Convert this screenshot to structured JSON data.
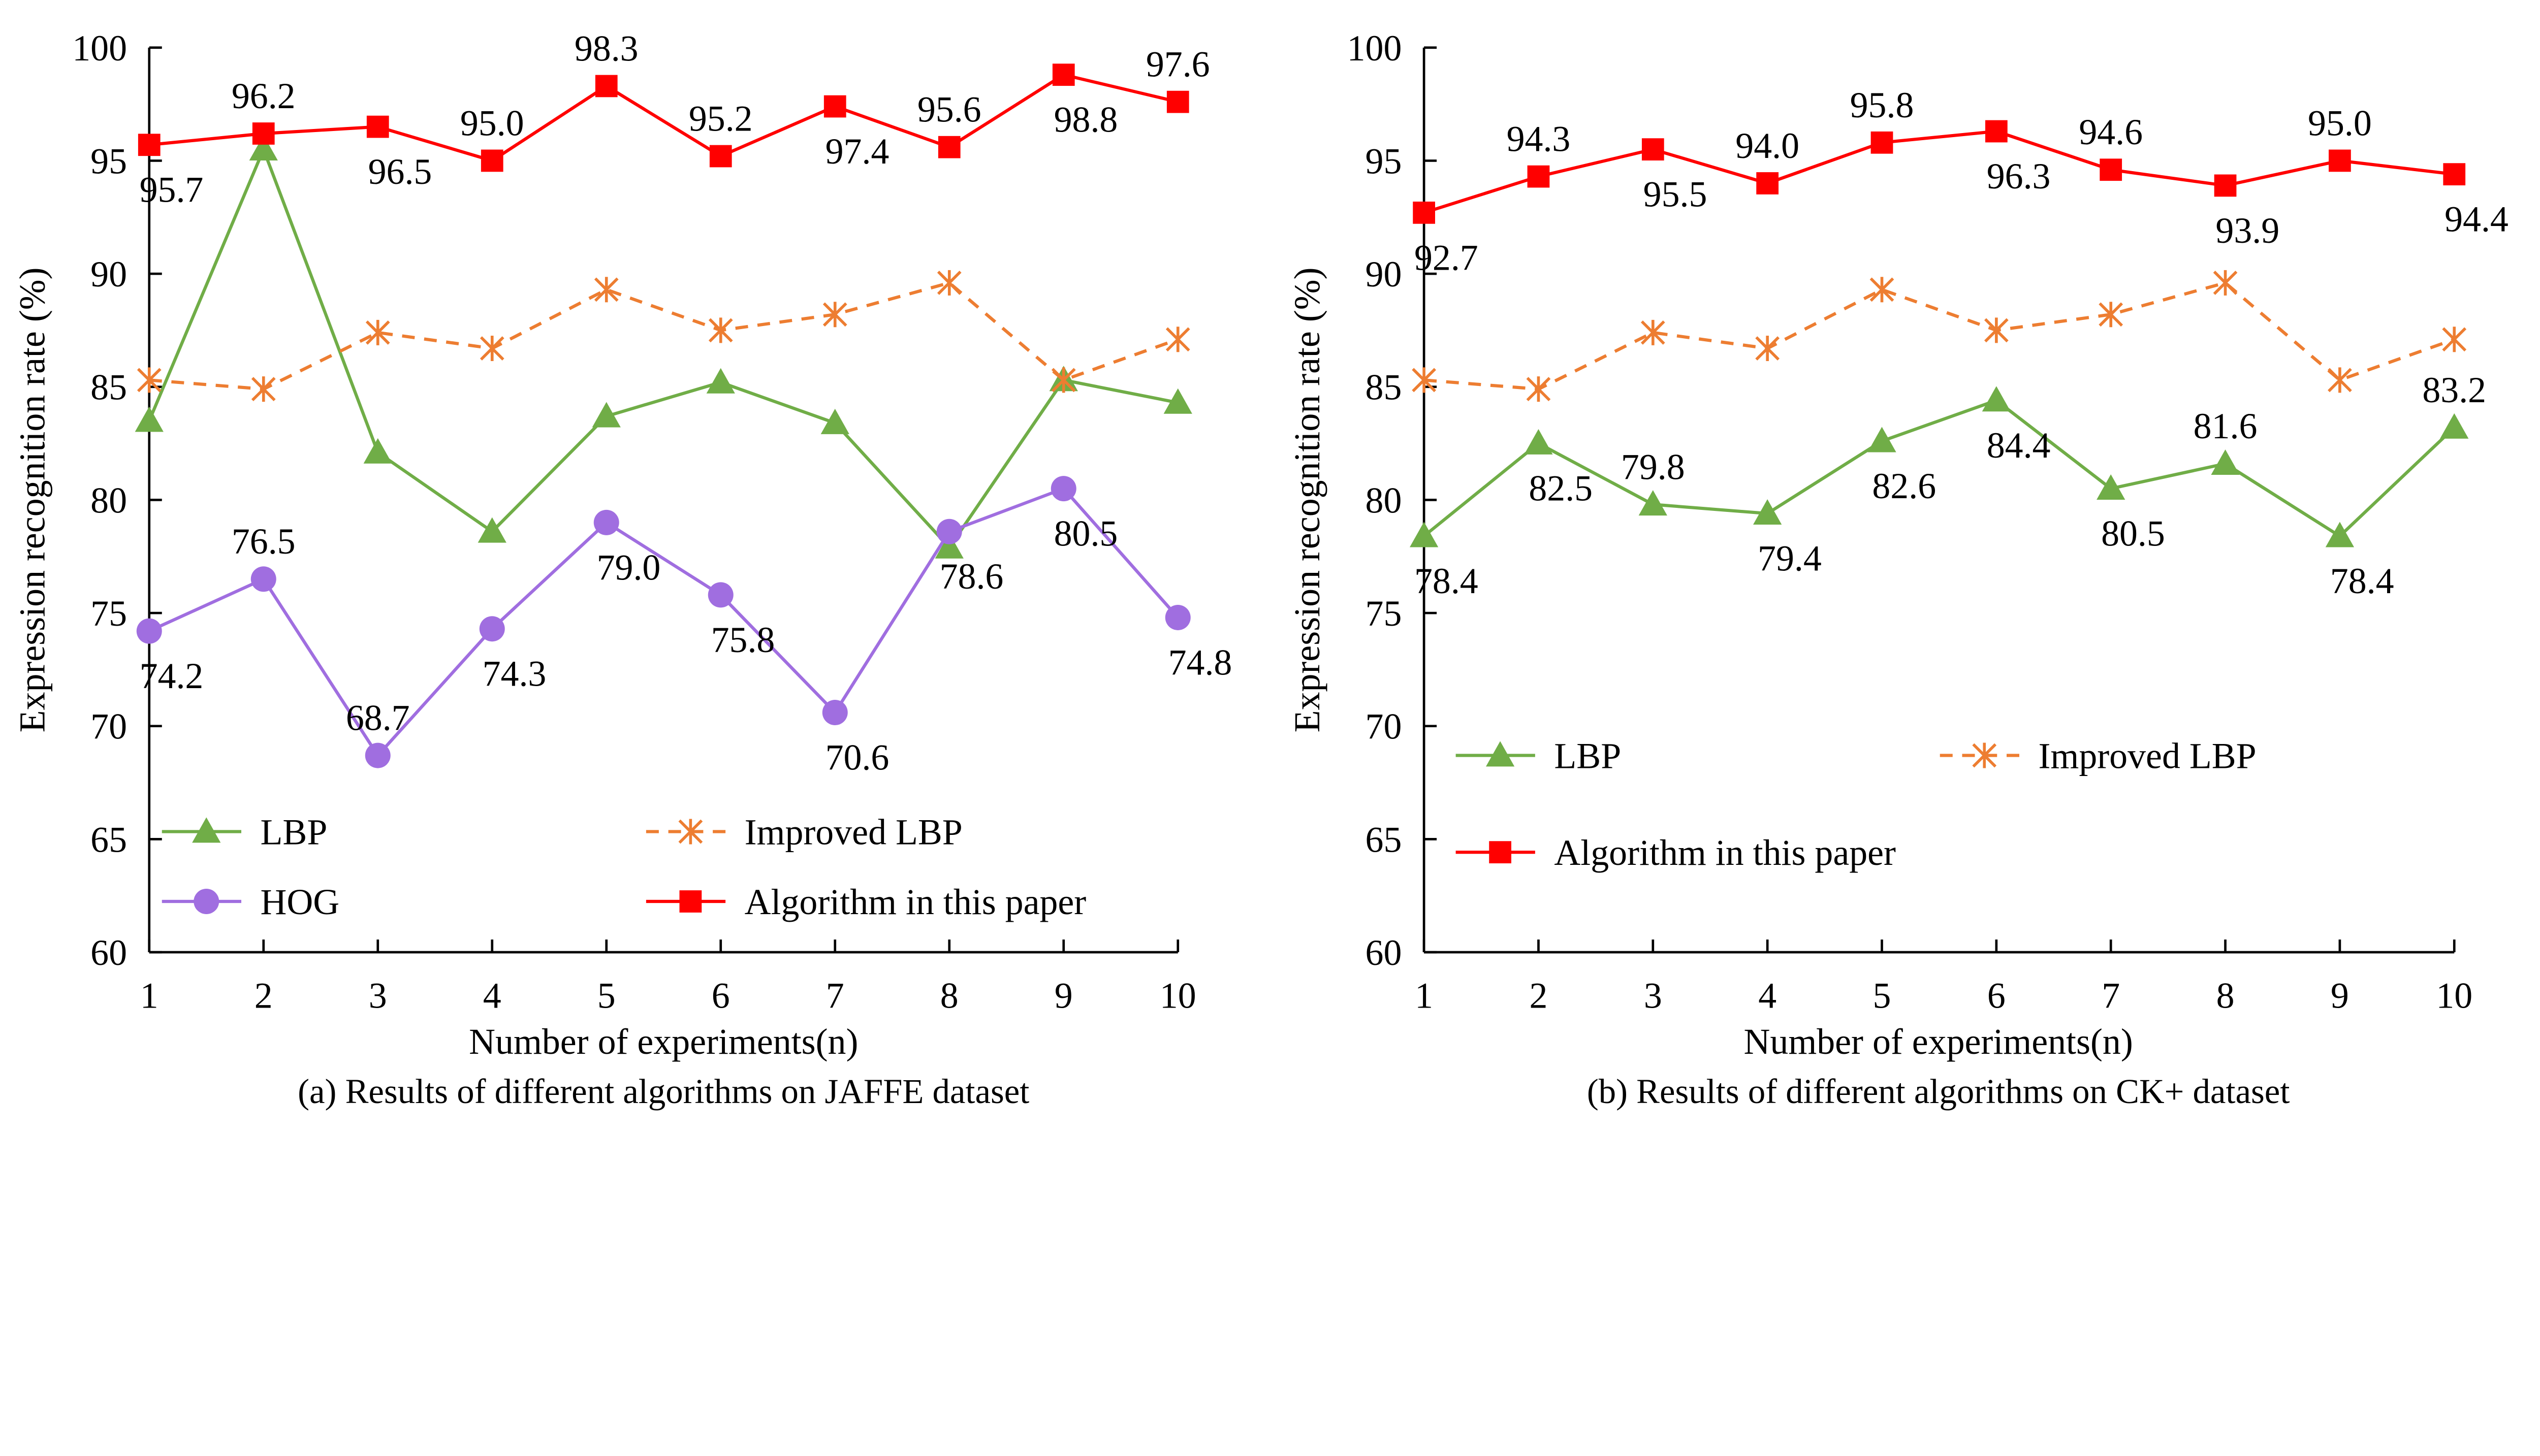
{
  "chart_data": [
    {
      "type": "line",
      "caption": "(a) Results of different algorithms on JAFFE dataset",
      "xlabel": "Number of experiments(n)",
      "ylabel": "Expression recognition rate (%)",
      "x": [
        1,
        2,
        3,
        4,
        5,
        6,
        7,
        8,
        9,
        10
      ],
      "xlim": [
        1,
        10
      ],
      "ylim": [
        60,
        100
      ],
      "yticks": [
        60,
        65,
        70,
        75,
        80,
        85,
        90,
        95,
        100
      ],
      "grid": false,
      "legend_placement": "bottom",
      "series": [
        {
          "name": "LBP",
          "color": "#70ad47",
          "marker": "triangle",
          "dash": false,
          "labels": false,
          "values": [
            83.5,
            95.5,
            82.1,
            78.6,
            83.7,
            85.2,
            83.4,
            77.9,
            85.3,
            84.3
          ]
        },
        {
          "name": "Improved LBP",
          "color": "#ed7d31",
          "marker": "asterisk",
          "dash": true,
          "labels": false,
          "values": [
            85.3,
            84.9,
            87.4,
            86.7,
            89.3,
            87.5,
            88.2,
            89.6,
            85.3,
            87.1
          ]
        },
        {
          "name": "HOG",
          "color": "#a06ee0",
          "marker": "circle",
          "dash": false,
          "labels": true,
          "values": [
            74.2,
            76.5,
            68.7,
            74.3,
            79.0,
            75.8,
            70.6,
            78.6,
            80.5,
            74.8
          ]
        },
        {
          "name": "Algorithm in this paper",
          "color": "#ff0000",
          "marker": "square",
          "dash": false,
          "labels": true,
          "values": [
            95.7,
            96.2,
            96.5,
            95.0,
            98.3,
            95.2,
            97.4,
            95.6,
            98.8,
            97.6
          ]
        }
      ]
    },
    {
      "type": "line",
      "caption": "(b) Results of different algorithms on CK+ dataset",
      "xlabel": "Number of experiments(n)",
      "ylabel": "Expression recognition rate (%)",
      "x": [
        1,
        2,
        3,
        4,
        5,
        6,
        7,
        8,
        9,
        10
      ],
      "xlim": [
        1,
        10
      ],
      "ylim": [
        60,
        100
      ],
      "yticks": [
        60,
        65,
        70,
        75,
        80,
        85,
        90,
        95,
        100
      ],
      "grid": false,
      "legend_placement": "bottom-left",
      "series": [
        {
          "name": "LBP",
          "color": "#70ad47",
          "marker": "triangle",
          "dash": false,
          "labels": true,
          "values": [
            78.4,
            82.5,
            79.8,
            79.4,
            82.6,
            84.4,
            80.5,
            81.6,
            78.4,
            83.2
          ]
        },
        {
          "name": "Improved LBP",
          "color": "#ed7d31",
          "marker": "asterisk",
          "dash": true,
          "labels": false,
          "values": [
            85.3,
            84.9,
            87.4,
            86.7,
            89.3,
            87.5,
            88.2,
            89.6,
            85.3,
            87.1
          ]
        },
        {
          "name": "Algorithm in this paper",
          "color": "#ff0000",
          "marker": "square",
          "dash": false,
          "labels": true,
          "values": [
            92.7,
            94.3,
            95.5,
            94.0,
            95.8,
            96.3,
            94.6,
            93.9,
            95.0,
            94.4
          ]
        }
      ]
    }
  ]
}
